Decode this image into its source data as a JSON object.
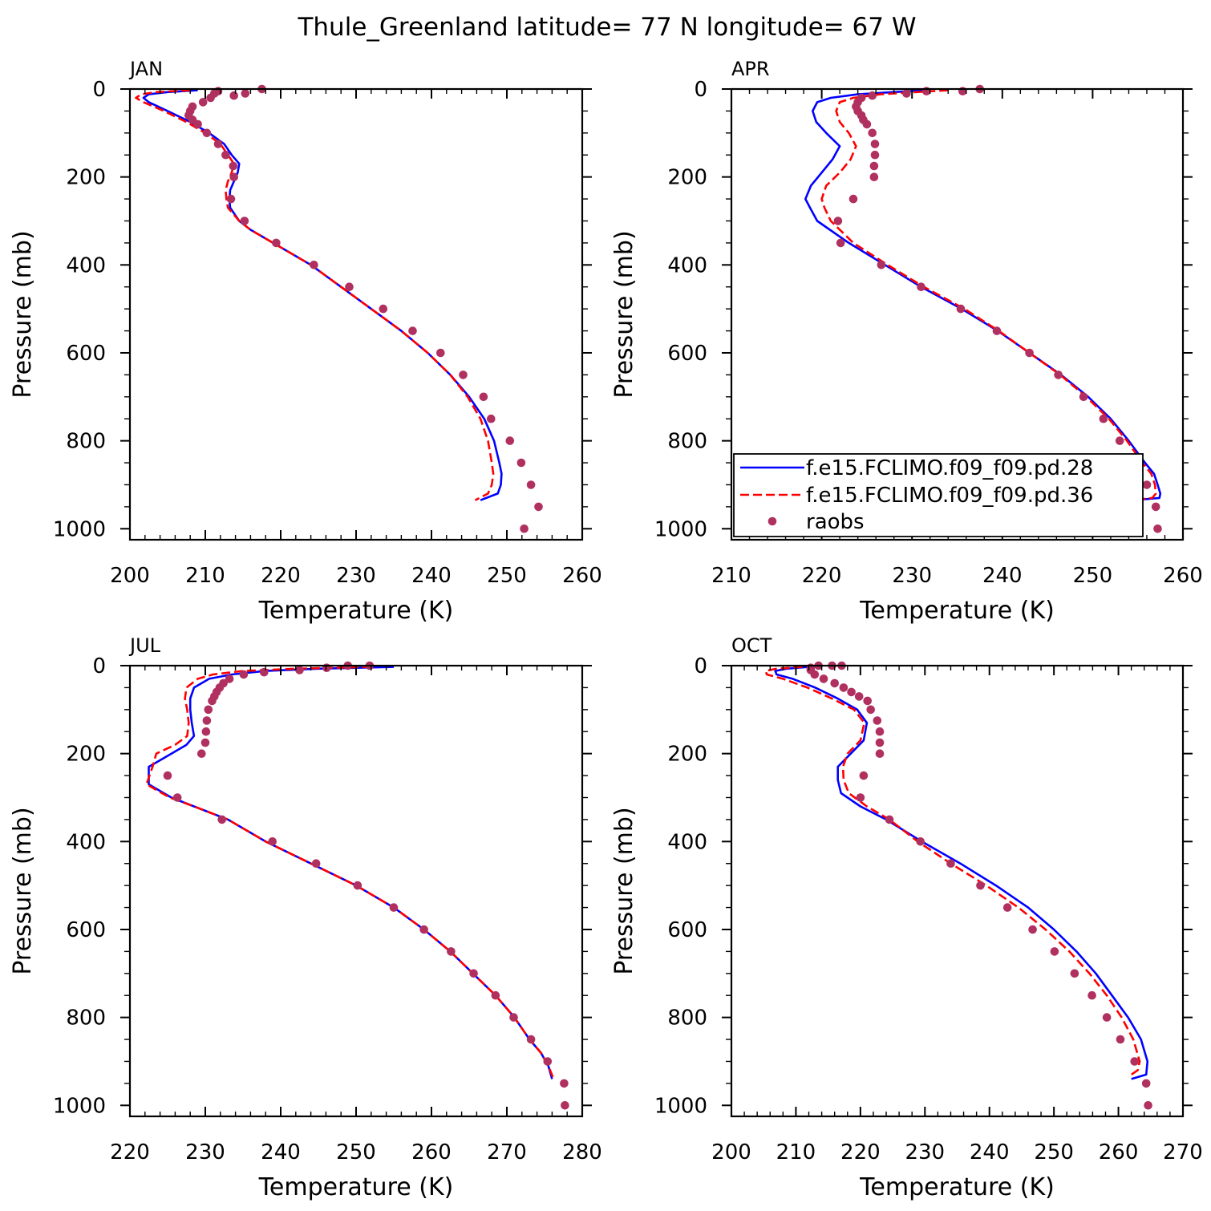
{
  "figure_title": "Thule_Greenland  latitude= 77 N longitude= 67 W",
  "colors": {
    "series_28": "#0000ff",
    "series_36": "#ff0000",
    "raobs": "#b03060",
    "axes": "#000000"
  },
  "legend": {
    "panel": "APR",
    "entries": [
      "f.e15.FCLIMO.f09_f09.pd.28",
      "f.e15.FCLIMO.f09_f09.pd.36",
      "raobs"
    ]
  },
  "chart_data": [
    {
      "type": "line",
      "panel": "JAN",
      "xlabel": "Temperature (K)",
      "ylabel": "Pressure (mb)",
      "xlim": [
        200,
        260
      ],
      "ylim": [
        0,
        1025
      ],
      "y_inverted": true,
      "xticks": [
        200,
        210,
        220,
        230,
        240,
        250,
        260
      ],
      "yticks": [
        0,
        200,
        400,
        600,
        800,
        1000
      ],
      "series": [
        {
          "name": "f.e15.FCLIMO.f09_f09.pd.28",
          "style": "solid",
          "x": [
            209.0,
            205.0,
            202.5,
            201.8,
            202.5,
            205.0,
            208.0,
            210.5,
            212.5,
            213.5,
            214.5,
            214.3,
            213.8,
            213.3,
            213.2,
            213.3,
            214.5,
            216.0,
            220.0,
            224.0,
            228.0,
            232.0,
            236.0,
            239.5,
            242.5,
            245.0,
            247.0,
            248.3,
            249.0,
            249.3,
            249.2,
            248.8,
            246.5
          ],
          "y": [
            3,
            7,
            12,
            20,
            30,
            50,
            75,
            100,
            125,
            150,
            170,
            190,
            210,
            230,
            250,
            270,
            300,
            320,
            360,
            400,
            450,
            500,
            550,
            600,
            650,
            700,
            750,
            800,
            850,
            875,
            900,
            920,
            935
          ]
        },
        {
          "name": "f.e15.FCLIMO.f09_f09.pd.36",
          "style": "dashed",
          "x": [
            208.0,
            203.5,
            201.5,
            200.8,
            201.8,
            204.5,
            207.5,
            210.0,
            212.0,
            213.0,
            213.8,
            213.5,
            213.0,
            212.7,
            212.8,
            213.0,
            214.5,
            216.0,
            220.0,
            224.0,
            228.0,
            232.0,
            236.0,
            239.5,
            242.5,
            244.8,
            246.5,
            247.5,
            248.0,
            248.2,
            248.0,
            247.5,
            245.8
          ],
          "y": [
            3,
            7,
            12,
            20,
            30,
            50,
            75,
            100,
            125,
            150,
            170,
            190,
            210,
            230,
            250,
            270,
            300,
            320,
            360,
            400,
            450,
            500,
            550,
            600,
            650,
            700,
            750,
            800,
            850,
            875,
            900,
            920,
            935
          ]
        },
        {
          "name": "raobs",
          "style": "markers",
          "x": [
            217.5,
            215.3,
            213.8,
            211.7,
            211.2,
            210.7,
            209.7,
            208.3,
            208.0,
            207.8,
            208.3,
            209.0,
            210.2,
            211.7,
            212.7,
            213.7,
            213.8,
            213.4,
            215.2,
            219.4,
            224.4,
            229.1,
            233.6,
            237.5,
            241.2,
            244.2,
            246.9,
            247.9,
            250.4,
            251.9,
            253.2,
            254.2,
            252.3
          ],
          "y": [
            0,
            10,
            15,
            5,
            10,
            20,
            30,
            40,
            50,
            60,
            70,
            80,
            100,
            125,
            150,
            175,
            200,
            250,
            300,
            350,
            400,
            450,
            500,
            550,
            600,
            650,
            700,
            750,
            800,
            850,
            900,
            950,
            1000
          ]
        }
      ]
    },
    {
      "type": "line",
      "panel": "APR",
      "xlabel": "Temperature (K)",
      "ylabel": "Pressure (mb)",
      "xlim": [
        210,
        260
      ],
      "ylim": [
        0,
        1025
      ],
      "y_inverted": true,
      "xticks": [
        210,
        220,
        230,
        240,
        250,
        260
      ],
      "yticks": [
        0,
        200,
        400,
        600,
        800,
        1000
      ],
      "series": [
        {
          "name": "f.e15.FCLIMO.f09_f09.pd.28",
          "style": "solid",
          "x": [
            231.5,
            228.0,
            224.0,
            221.0,
            219.5,
            219.0,
            219.4,
            220.5,
            222.0,
            221.2,
            220.0,
            218.8,
            218.2,
            218.7,
            219.5,
            223.0,
            227.0,
            231.0,
            235.5,
            239.5,
            243.0,
            246.5,
            249.5,
            252.0,
            254.0,
            255.8,
            256.8,
            257.2,
            257.5,
            257.4,
            254.5
          ],
          "y": [
            3,
            7,
            12,
            20,
            30,
            50,
            75,
            100,
            130,
            160,
            190,
            220,
            250,
            270,
            300,
            350,
            400,
            450,
            500,
            550,
            600,
            650,
            700,
            750,
            800,
            850,
            875,
            900,
            920,
            930,
            935
          ]
        },
        {
          "name": "f.e15.FCLIMO.f09_f09.pd.36",
          "style": "dashed",
          "x": [
            234.0,
            230.5,
            226.5,
            223.5,
            222.0,
            221.6,
            222.0,
            223.0,
            223.8,
            223.2,
            222.0,
            220.5,
            220.0,
            220.3,
            221.0,
            223.5,
            227.3,
            231.3,
            235.8,
            239.6,
            243.0,
            246.4,
            249.3,
            251.8,
            253.8,
            255.5,
            256.5,
            256.9,
            257.0,
            256.6,
            254.5
          ],
          "y": [
            3,
            7,
            12,
            20,
            30,
            50,
            75,
            100,
            130,
            160,
            190,
            220,
            250,
            270,
            300,
            350,
            400,
            450,
            500,
            550,
            600,
            650,
            700,
            750,
            800,
            850,
            875,
            900,
            920,
            930,
            935
          ]
        },
        {
          "name": "raobs",
          "style": "markers",
          "x": [
            237.5,
            235.6,
            231.6,
            229.4,
            225.6,
            224.4,
            224.0,
            223.8,
            224.0,
            224.4,
            224.6,
            225.0,
            225.6,
            225.9,
            225.9,
            225.8,
            225.8,
            223.5,
            221.8,
            222.1,
            226.6,
            231.0,
            235.4,
            239.4,
            243.0,
            246.2,
            249.0,
            251.2,
            253.0,
            254.6,
            256.0,
            257.0,
            257.2
          ],
          "y": [
            0,
            5,
            5,
            10,
            15,
            20,
            30,
            40,
            50,
            60,
            70,
            80,
            100,
            125,
            150,
            175,
            200,
            250,
            300,
            350,
            400,
            450,
            500,
            550,
            600,
            650,
            700,
            750,
            800,
            850,
            900,
            950,
            1000
          ]
        }
      ]
    },
    {
      "type": "line",
      "panel": "JUL",
      "xlabel": "Temperature (K)",
      "ylabel": "Pressure (mb)",
      "xlim": [
        220,
        280
      ],
      "ylim": [
        0,
        1025
      ],
      "y_inverted": true,
      "xticks": [
        220,
        230,
        240,
        250,
        260,
        270,
        280
      ],
      "yticks": [
        0,
        200,
        400,
        600,
        800,
        1000
      ],
      "series": [
        {
          "name": "f.e15.FCLIMO.f09_f09.pd.28",
          "style": "solid",
          "x": [
            255.0,
            245.0,
            238.0,
            233.5,
            230.5,
            228.5,
            228.0,
            228.0,
            228.2,
            228.5,
            227.5,
            225.5,
            222.5,
            222.5,
            225.5,
            228.5,
            233.0,
            238.0,
            244.0,
            250.0,
            255.0,
            259.0,
            262.5,
            265.5,
            268.5,
            271.0,
            273.0,
            274.5,
            275.5,
            276.0
          ],
          "y": [
            3,
            7,
            12,
            20,
            30,
            50,
            75,
            100,
            130,
            160,
            180,
            200,
            230,
            270,
            300,
            320,
            350,
            400,
            450,
            500,
            550,
            600,
            650,
            700,
            750,
            800,
            850,
            880,
            910,
            940
          ]
        },
        {
          "name": "f.e15.FCLIMO.f09_f09.pd.36",
          "style": "dashed",
          "x": [
            252.0,
            242.0,
            235.0,
            231.0,
            229.0,
            227.5,
            227.3,
            227.6,
            227.8,
            227.6,
            226.0,
            223.5,
            223.0,
            222.2,
            225.3,
            228.5,
            233.0,
            238.0,
            244.0,
            250.0,
            255.0,
            259.0,
            262.5,
            265.5,
            268.5,
            271.0,
            273.0,
            274.5,
            275.5,
            276.2
          ],
          "y": [
            3,
            7,
            12,
            20,
            30,
            50,
            75,
            100,
            130,
            160,
            180,
            200,
            230,
            270,
            300,
            320,
            350,
            400,
            450,
            500,
            550,
            600,
            650,
            700,
            750,
            800,
            850,
            880,
            910,
            940
          ]
        },
        {
          "name": "raobs",
          "style": "markers",
          "x": [
            251.8,
            248.9,
            246.1,
            242.5,
            237.8,
            235.1,
            233.2,
            232.4,
            231.9,
            231.5,
            231.2,
            230.9,
            230.4,
            230.2,
            230.1,
            230.0,
            229.5,
            225.0,
            226.3,
            232.2,
            238.9,
            244.7,
            250.2,
            255.0,
            259.0,
            262.6,
            265.6,
            268.5,
            270.9,
            273.2,
            275.4,
            277.6,
            277.7
          ],
          "y": [
            0,
            0,
            5,
            10,
            15,
            20,
            30,
            40,
            50,
            60,
            70,
            80,
            100,
            125,
            150,
            175,
            200,
            250,
            300,
            350,
            400,
            450,
            500,
            550,
            600,
            650,
            700,
            750,
            800,
            850,
            900,
            950,
            1000
          ]
        }
      ]
    },
    {
      "type": "line",
      "panel": "OCT",
      "xlabel": "Temperature (K)",
      "ylabel": "Pressure (mb)",
      "xlim": [
        200,
        270
      ],
      "ylim": [
        0,
        1025
      ],
      "y_inverted": true,
      "xticks": [
        200,
        210,
        220,
        230,
        240,
        250,
        260,
        270
      ],
      "yticks": [
        0,
        200,
        400,
        600,
        800,
        1000
      ],
      "series": [
        {
          "name": "f.e15.FCLIMO.f09_f09.pd.28",
          "style": "solid",
          "x": [
            212.0,
            208.5,
            206.8,
            207.0,
            209.5,
            213.0,
            216.5,
            219.5,
            221.0,
            220.5,
            218.5,
            216.5,
            216.5,
            217.0,
            220.0,
            224.0,
            229.5,
            235.5,
            241.0,
            246.0,
            250.0,
            253.5,
            256.5,
            259.0,
            261.5,
            263.5,
            264.5,
            264.3,
            262.0
          ],
          "y": [
            3,
            7,
            12,
            20,
            30,
            50,
            75,
            100,
            130,
            170,
            200,
            230,
            260,
            290,
            320,
            350,
            400,
            450,
            500,
            550,
            600,
            650,
            700,
            750,
            800,
            850,
            900,
            930,
            940
          ]
        },
        {
          "name": "f.e15.FCLIMO.f09_f09.pd.36",
          "style": "dashed",
          "x": [
            211.0,
            207.0,
            205.3,
            205.5,
            208.0,
            211.8,
            215.6,
            219.0,
            220.6,
            220.0,
            218.0,
            217.3,
            217.4,
            218.2,
            221.0,
            224.5,
            228.9,
            234.0,
            239.5,
            244.5,
            248.7,
            252.4,
            255.5,
            258.2,
            260.5,
            262.3,
            263.3,
            263.0,
            261.5
          ],
          "y": [
            3,
            7,
            12,
            20,
            30,
            50,
            75,
            100,
            130,
            170,
            200,
            230,
            260,
            290,
            320,
            350,
            400,
            450,
            500,
            550,
            600,
            650,
            700,
            750,
            800,
            850,
            900,
            920,
            935
          ]
        },
        {
          "name": "raobs",
          "style": "markers",
          "x": [
            217.1,
            215.6,
            213.5,
            212.3,
            212.3,
            212.9,
            214.3,
            216.0,
            217.4,
            218.6,
            219.8,
            221.1,
            221.6,
            222.6,
            223.0,
            223.0,
            223.0,
            220.5,
            220.0,
            224.5,
            229.3,
            234.0,
            238.6,
            242.8,
            246.7,
            250.1,
            253.2,
            255.9,
            258.2,
            260.3,
            262.5,
            264.3,
            264.6
          ],
          "y": [
            0,
            0,
            0,
            5,
            10,
            20,
            30,
            40,
            50,
            60,
            70,
            80,
            100,
            125,
            150,
            175,
            200,
            250,
            300,
            350,
            400,
            450,
            500,
            550,
            600,
            650,
            700,
            750,
            800,
            850,
            900,
            950,
            1000
          ]
        }
      ]
    }
  ]
}
